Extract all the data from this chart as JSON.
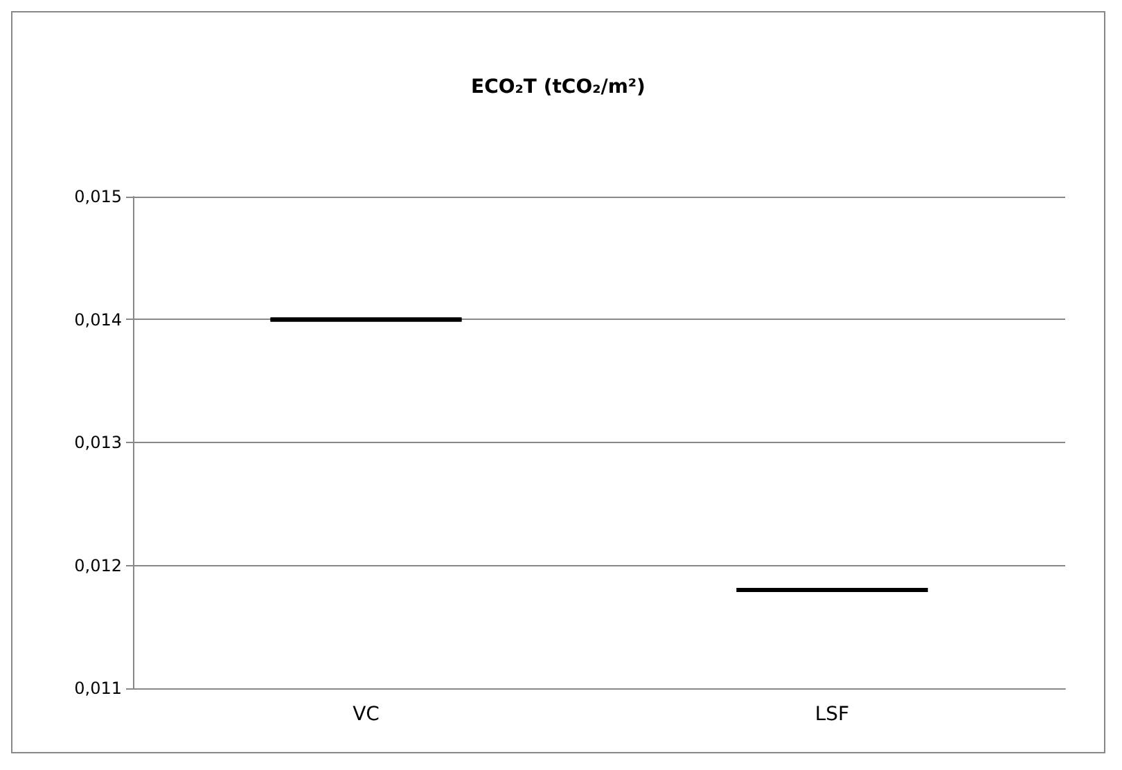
{
  "chart_data": {
    "type": "box",
    "title": "ECO₂T (tCO₂/m²)",
    "categories": [
      "VC",
      "LSF"
    ],
    "series": [
      {
        "color": "#000000",
        "boxes": [
          {
            "low": 0.014,
            "q1": 0.014,
            "median": 0.014,
            "q3": 0.014,
            "high": 0.014
          },
          {
            "low": 0.0118,
            "q1": 0.0118,
            "median": 0.0118,
            "q3": 0.0118,
            "high": 0.0118
          }
        ]
      }
    ],
    "ylim": [
      0.011,
      0.015
    ],
    "yticks": [
      {
        "value": 0.011,
        "label": "0,011"
      },
      {
        "value": 0.012,
        "label": "0,012"
      },
      {
        "value": 0.013,
        "label": "0,013"
      },
      {
        "value": 0.014,
        "label": "0,014"
      },
      {
        "value": 0.015,
        "label": "0,015"
      }
    ],
    "grid": "y"
  }
}
